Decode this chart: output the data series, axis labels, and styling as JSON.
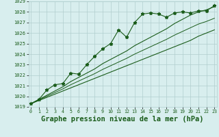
{
  "title": "Graphe pression niveau de la mer (hPa)",
  "x_values": [
    0,
    1,
    2,
    3,
    4,
    5,
    6,
    7,
    8,
    9,
    10,
    11,
    12,
    13,
    14,
    15,
    16,
    17,
    18,
    19,
    20,
    21,
    22,
    23
  ],
  "pressure_main": [
    1019.3,
    1019.7,
    1020.6,
    1021.1,
    1021.2,
    1022.2,
    1022.1,
    1023.0,
    1023.8,
    1024.5,
    1025.0,
    1026.3,
    1025.6,
    1027.0,
    1027.8,
    1027.9,
    1027.8,
    1027.5,
    1027.9,
    1028.0,
    1027.9,
    1028.1,
    1028.1,
    1028.6
  ],
  "trend_upper": [
    1019.3,
    1019.7,
    1020.1,
    1020.5,
    1020.9,
    1021.4,
    1021.8,
    1022.2,
    1022.6,
    1023.1,
    1023.5,
    1023.9,
    1024.3,
    1024.8,
    1025.2,
    1025.6,
    1026.0,
    1026.4,
    1026.9,
    1027.3,
    1027.7,
    1028.0,
    1028.2,
    1028.5
  ],
  "trend_lower": [
    1019.3,
    1019.6,
    1019.9,
    1020.2,
    1020.5,
    1020.8,
    1021.1,
    1021.4,
    1021.7,
    1022.0,
    1022.3,
    1022.6,
    1022.9,
    1023.2,
    1023.5,
    1023.8,
    1024.1,
    1024.4,
    1024.7,
    1025.0,
    1025.3,
    1025.7,
    1026.0,
    1026.3
  ],
  "trend_mid": [
    1019.3,
    1019.65,
    1020.0,
    1020.35,
    1020.7,
    1021.1,
    1021.45,
    1021.8,
    1022.15,
    1022.55,
    1022.9,
    1023.25,
    1023.6,
    1024.0,
    1024.35,
    1024.7,
    1025.05,
    1025.4,
    1025.8,
    1026.15,
    1026.5,
    1026.85,
    1027.1,
    1027.4
  ],
  "ylim": [
    1019,
    1029
  ],
  "yticks": [
    1019,
    1020,
    1021,
    1022,
    1023,
    1024,
    1025,
    1026,
    1027,
    1028,
    1029
  ],
  "xticks": [
    0,
    1,
    2,
    3,
    4,
    5,
    6,
    7,
    8,
    9,
    10,
    11,
    12,
    13,
    14,
    15,
    16,
    17,
    18,
    19,
    20,
    21,
    22,
    23
  ],
  "line_color": "#1a5c1a",
  "bg_color": "#d8eeee",
  "grid_color": "#b0cece",
  "title_fontsize": 7.5,
  "marker": "*"
}
